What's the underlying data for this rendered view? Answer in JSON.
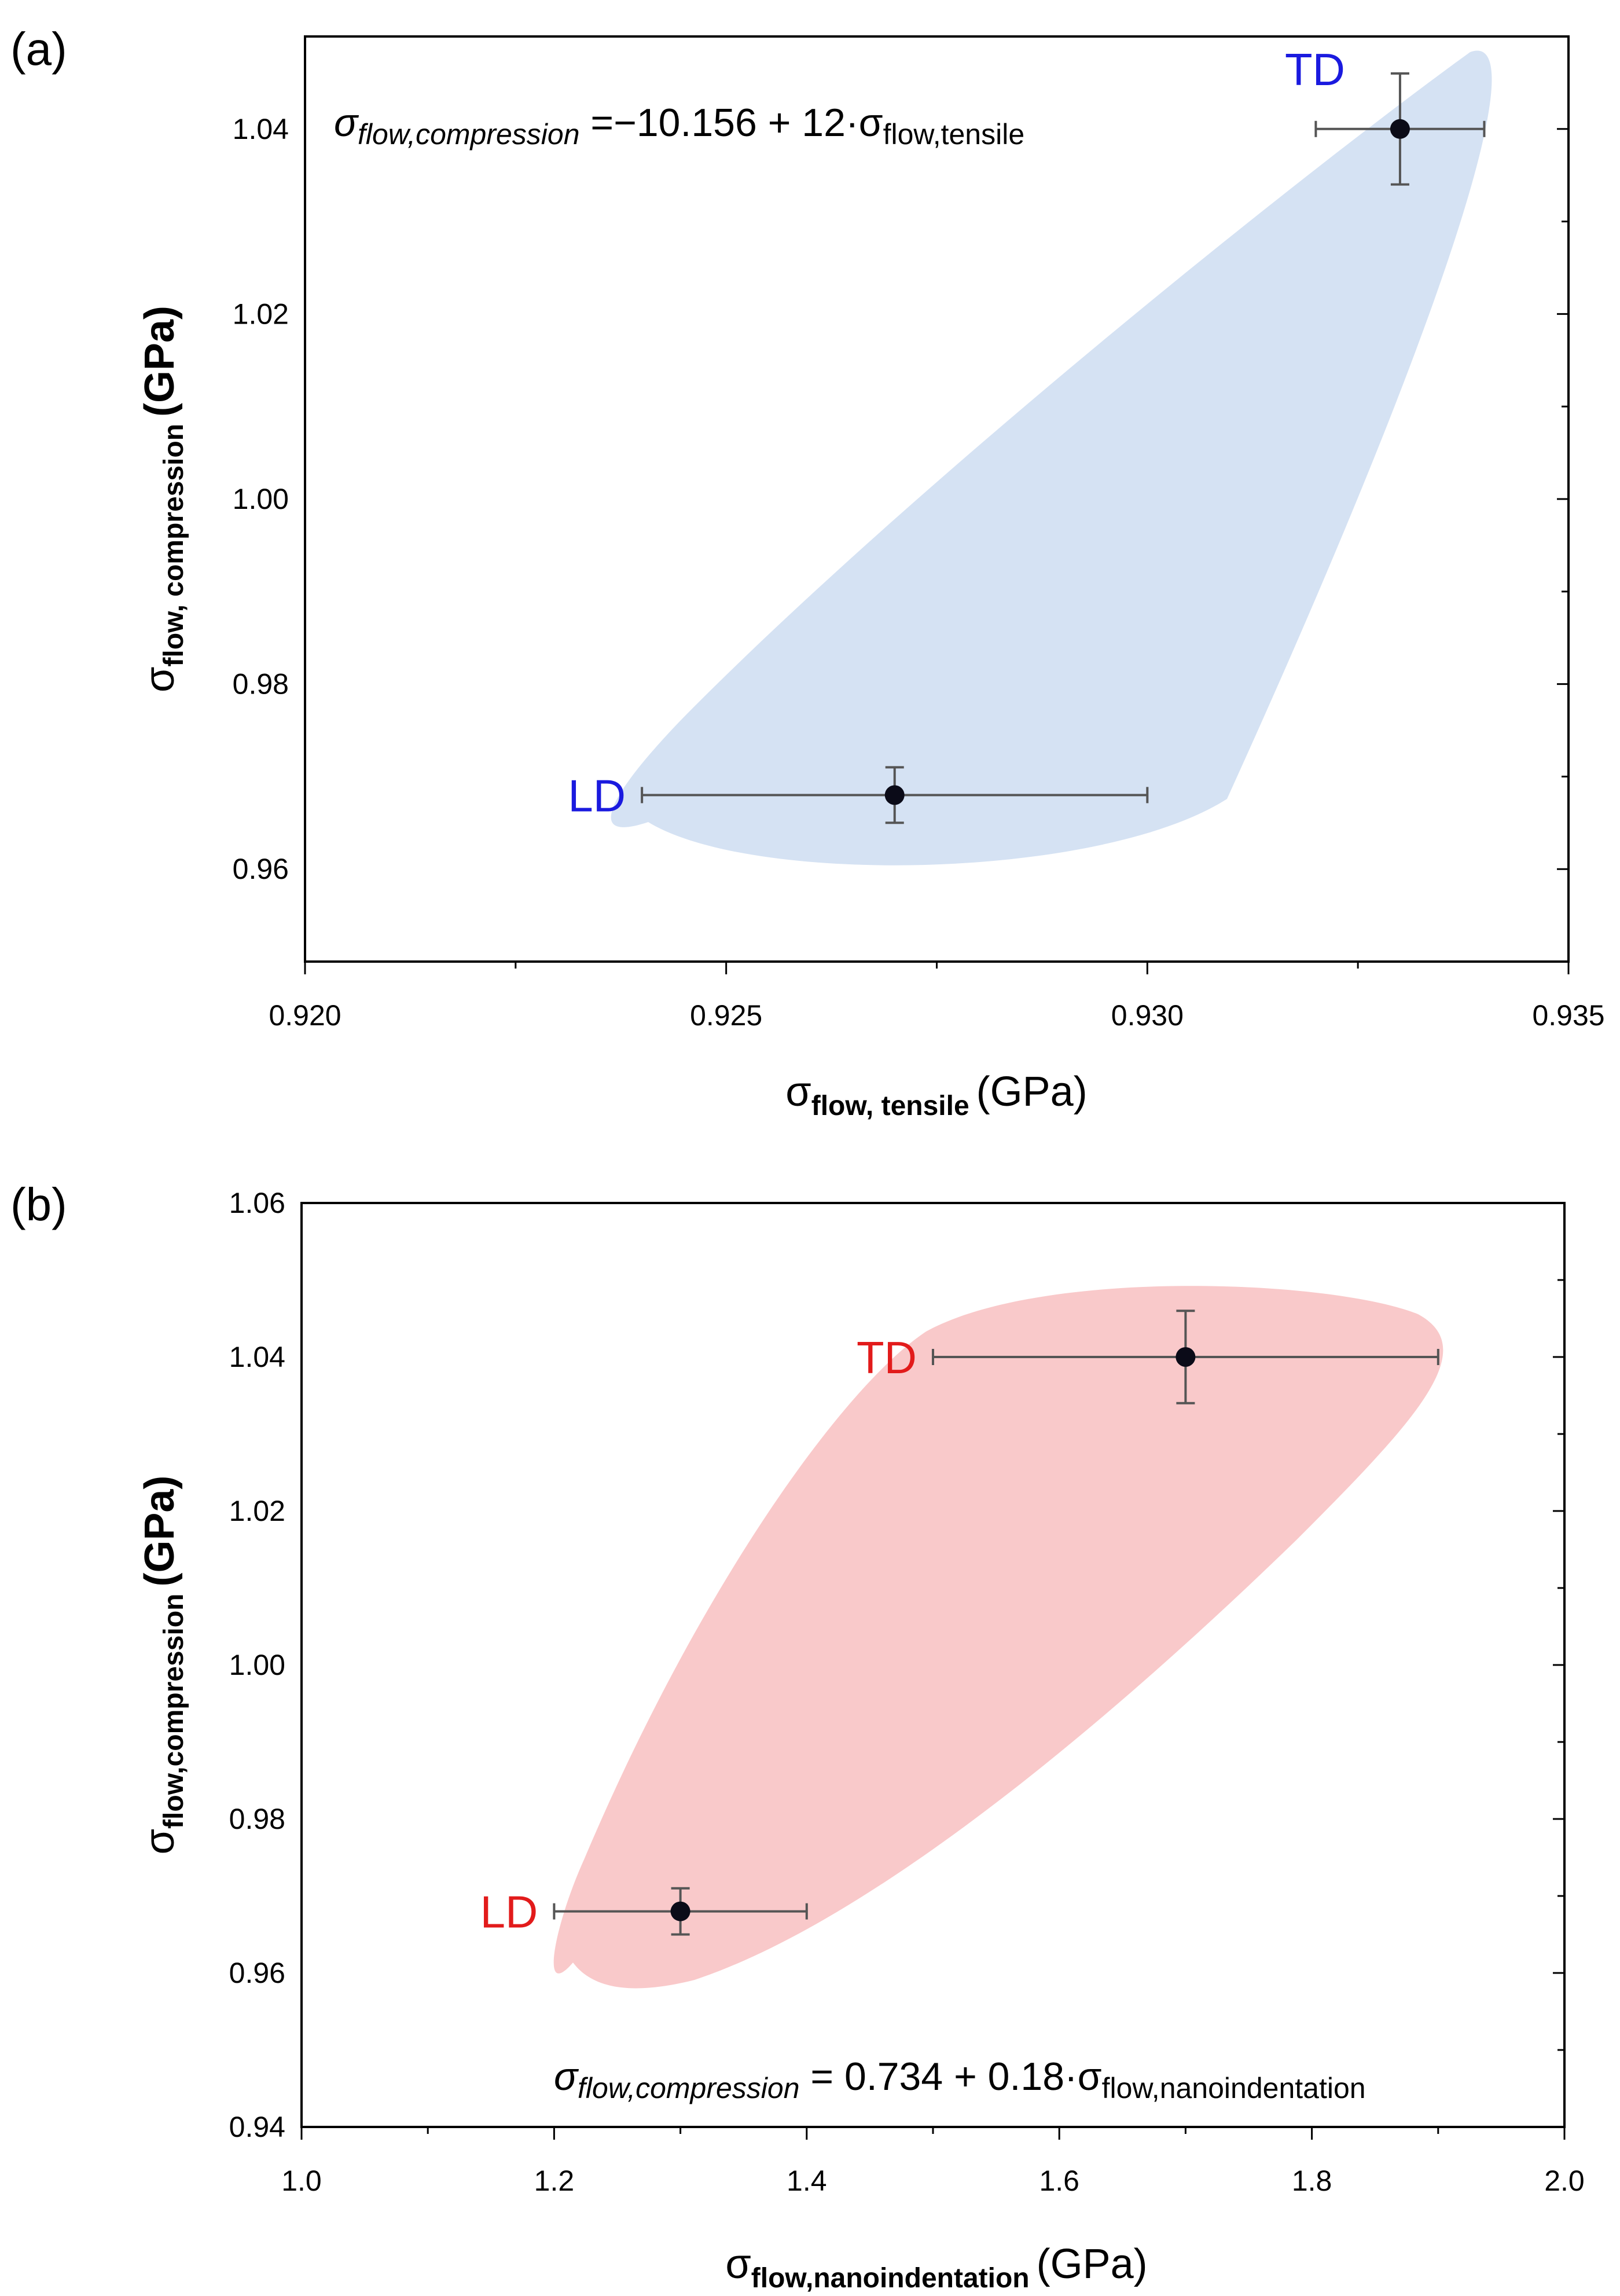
{
  "chart_data": [
    {
      "type": "scatter",
      "panel_label": "(a)",
      "xlabel": {
        "symbol": "σ",
        "sub": "flow, tensile",
        "unit": "(GPa)"
      },
      "ylabel": {
        "symbol": "σ",
        "sub": "flow, compression",
        "unit": "(GPa)"
      },
      "xlim": [
        0.92,
        0.935
      ],
      "ylim": [
        0.95,
        1.05
      ],
      "xticks": [
        "0.920",
        "0.925",
        "0.930",
        "0.935"
      ],
      "xtick_values": [
        0.92,
        0.925,
        0.93,
        0.935
      ],
      "yticks": [
        "0.96",
        "0.98",
        "1.00",
        "1.02",
        "1.04"
      ],
      "ytick_values": [
        0.96,
        0.98,
        1.0,
        1.02,
        1.04
      ],
      "region_color": "#d5e2f3",
      "label_color": "#1a1adf",
      "points": [
        {
          "label": "LD",
          "x": 0.927,
          "y": 0.968,
          "xerr": [
            0.924,
            0.93
          ],
          "yerr": [
            0.965,
            0.971
          ]
        },
        {
          "label": "TD",
          "x": 0.933,
          "y": 1.04,
          "xerr": [
            0.932,
            0.934
          ],
          "yerr": [
            1.034,
            1.046
          ]
        }
      ],
      "equation": {
        "lhs_symbol": "σ",
        "lhs_sub": "flow,compression",
        "rhs_text": " =−10.156 + 12·σ",
        "rhs_sub": "flow,tensile"
      }
    },
    {
      "type": "scatter",
      "panel_label": "(b)",
      "xlabel": {
        "symbol": "σ",
        "sub": "flow,nanoindentation",
        "unit": "(GPa)"
      },
      "ylabel": {
        "symbol": "σ",
        "sub": "flow,compression",
        "unit": "(GPa)"
      },
      "xlim": [
        1.0,
        2.0
      ],
      "ylim": [
        0.94,
        1.06
      ],
      "xticks": [
        "1.0",
        "1.2",
        "1.4",
        "1.6",
        "1.8",
        "2.0"
      ],
      "xtick_values": [
        1.0,
        1.2,
        1.4,
        1.6,
        1.8,
        2.0
      ],
      "yticks": [
        "0.94",
        "0.96",
        "0.98",
        "1.00",
        "1.02",
        "1.04",
        "1.06"
      ],
      "ytick_values": [
        0.94,
        0.96,
        0.98,
        1.0,
        1.02,
        1.04,
        1.06
      ],
      "region_color": "#f9c9ca",
      "label_color": "#e21b1b",
      "points": [
        {
          "label": "LD",
          "x": 1.3,
          "y": 0.968,
          "xerr": [
            1.2,
            1.4
          ],
          "yerr": [
            0.965,
            0.971
          ]
        },
        {
          "label": "TD",
          "x": 1.7,
          "y": 1.04,
          "xerr": [
            1.5,
            1.9
          ],
          "yerr": [
            1.034,
            1.046
          ]
        }
      ],
      "equation": {
        "lhs_symbol": "σ",
        "lhs_sub": "flow,compression",
        "rhs_text": " = 0.734 + 0.18·σ",
        "rhs_sub": "flow,nanoindentation"
      }
    }
  ]
}
